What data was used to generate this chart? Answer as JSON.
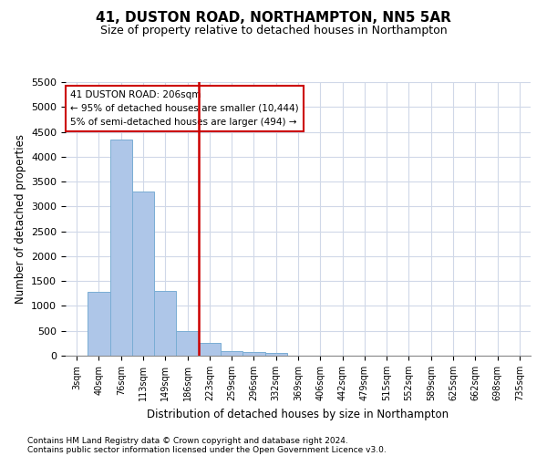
{
  "title": "41, DUSTON ROAD, NORTHAMPTON, NN5 5AR",
  "subtitle": "Size of property relative to detached houses in Northampton",
  "xlabel": "Distribution of detached houses by size in Northampton",
  "ylabel": "Number of detached properties",
  "footnote1": "Contains HM Land Registry data © Crown copyright and database right 2024.",
  "footnote2": "Contains public sector information licensed under the Open Government Licence v3.0.",
  "bar_labels": [
    "3sqm",
    "40sqm",
    "76sqm",
    "113sqm",
    "149sqm",
    "186sqm",
    "223sqm",
    "259sqm",
    "296sqm",
    "332sqm",
    "369sqm",
    "406sqm",
    "442sqm",
    "479sqm",
    "515sqm",
    "552sqm",
    "589sqm",
    "625sqm",
    "662sqm",
    "698sqm",
    "735sqm"
  ],
  "bar_values": [
    0,
    1280,
    4350,
    3300,
    1300,
    500,
    250,
    100,
    75,
    50,
    0,
    0,
    0,
    0,
    0,
    0,
    0,
    0,
    0,
    0,
    0
  ],
  "bar_color": "#aec6e8",
  "bar_edge_color": "#7aadd4",
  "red_line_x": 5.5,
  "ylim": [
    0,
    5500
  ],
  "yticks": [
    0,
    500,
    1000,
    1500,
    2000,
    2500,
    3000,
    3500,
    4000,
    4500,
    5000,
    5500
  ],
  "annotation_line1": "41 DUSTON ROAD: 206sqm",
  "annotation_line2": "← 95% of detached houses are smaller (10,444)",
  "annotation_line3": "5% of semi-detached houses are larger (494) →",
  "annotation_box_color": "#cc0000",
  "vline_color": "#cc0000",
  "background_color": "#ffffff",
  "grid_color": "#d0d8e8"
}
